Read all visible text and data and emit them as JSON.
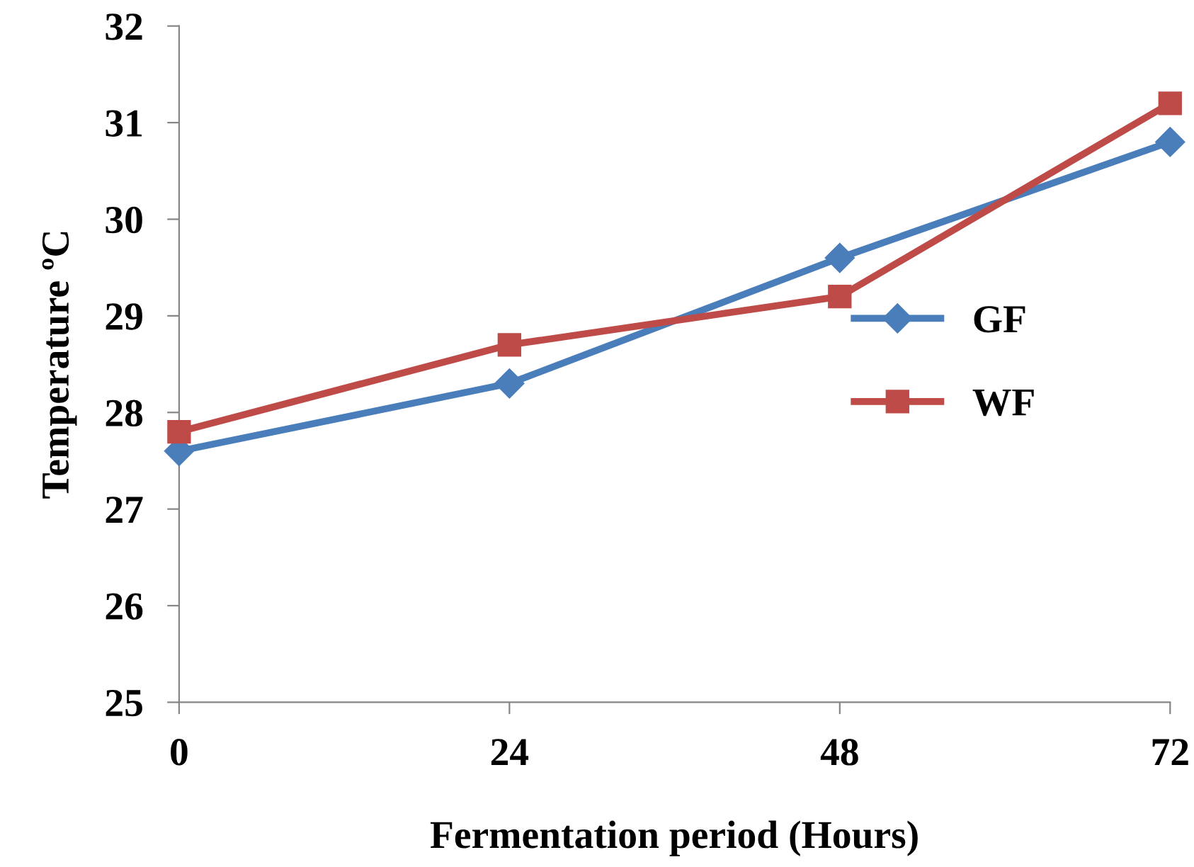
{
  "chart_data": {
    "type": "line",
    "xlabel": "Fermentation period (Hours)",
    "ylabel": "Temperature ºC",
    "x": [
      0,
      24,
      48,
      72
    ],
    "series": [
      {
        "name": "GF",
        "color": "#4a7ebb",
        "values": [
          27.6,
          28.3,
          29.6,
          30.8
        ],
        "marker": "diamond"
      },
      {
        "name": "WF",
        "color": "#be4b48",
        "values": [
          27.8,
          28.7,
          29.2,
          31.2
        ],
        "marker": "square"
      }
    ],
    "xlim": [
      0,
      72
    ],
    "xticks": [
      0,
      24,
      48,
      72
    ],
    "ylim": [
      25,
      32
    ],
    "yticks": [
      25,
      26,
      27,
      28,
      29,
      30,
      31,
      32
    ],
    "grid": false,
    "legend": "right",
    "line_style": "solid"
  }
}
